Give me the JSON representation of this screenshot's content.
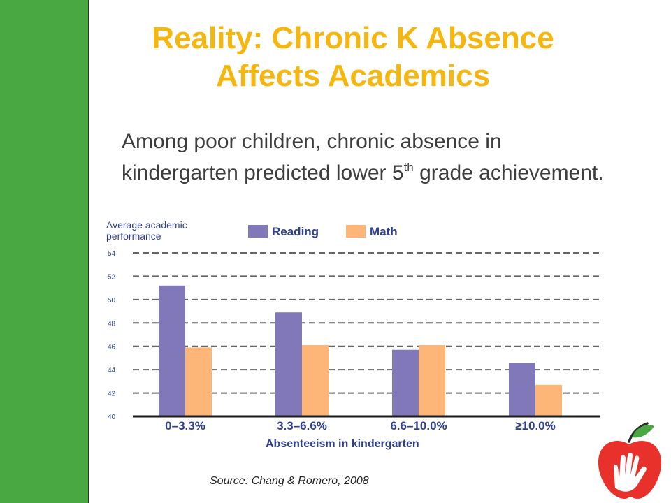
{
  "slide": {
    "title_line1": "Reality: Chronic K Absence",
    "title_line2": "Affects Academics",
    "subtitle_pre": "Among poor children, chronic absence in kindergarten predicted lower 5",
    "subtitle_sup": "th",
    "subtitle_post": " grade achievement.",
    "source": "Source: Chang & Romero, 2008",
    "accent_green": "#4aa843",
    "title_color": "#f5b70f",
    "logo_icon": "apple-hand-logo-icon"
  },
  "chart_data": {
    "type": "bar",
    "ylabel": "Average academic performance",
    "xlabel": "Absenteeism in kindergarten",
    "categories": [
      "0–3.3%",
      "3.3–6.6%",
      "6.6–10.0%",
      "≥10.0%"
    ],
    "series": [
      {
        "name": "Reading",
        "color": "#8078b9",
        "values": [
          51.2,
          48.9,
          45.7,
          44.6
        ]
      },
      {
        "name": "Math",
        "color": "#fdb677",
        "values": [
          45.9,
          46.1,
          46.1,
          42.7
        ]
      }
    ],
    "ylim": [
      40,
      54
    ],
    "yticks": [
      "40",
      "42",
      "44",
      "46",
      "48",
      "50",
      "52",
      "54"
    ],
    "ytick_values": [
      40,
      42,
      44,
      46,
      48,
      50,
      52,
      54
    ],
    "grid": "dashed horizontal",
    "legend": "top"
  }
}
